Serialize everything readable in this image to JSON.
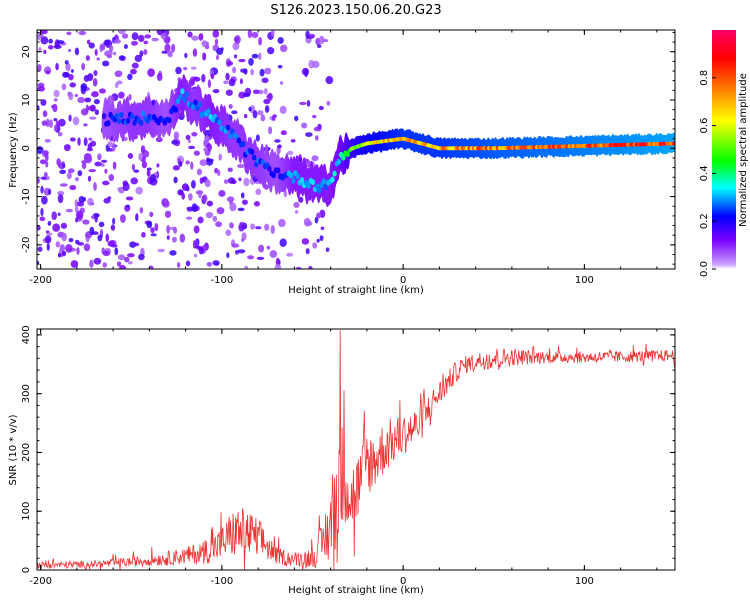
{
  "title": "S126.2023.150.06.20.G23",
  "chart_data": [
    {
      "type": "heatmap",
      "xlabel": "Height of straight line (km)",
      "ylabel": "Frequency (Hz)",
      "xlim": [
        -202,
        150
      ],
      "ylim": [
        -25,
        24.5
      ],
      "xticks": [
        -200,
        -100,
        0,
        100
      ],
      "yticks": [
        20,
        10,
        0,
        -10,
        -20
      ],
      "colorbar": {
        "label": "Normalized spectral amplitude",
        "range": [
          0.0,
          1.0
        ],
        "ticks": [
          0.0,
          0.2,
          0.4,
          0.6,
          0.8
        ],
        "colors": [
          "#ffffff",
          "#c7a0ff",
          "#7a00ff",
          "#0000ff",
          "#00ffff",
          "#00ff00",
          "#ffff00",
          "#ff8000",
          "#ff0000",
          "#ff0066"
        ]
      },
      "ridge": {
        "x": [
          -165,
          -150,
          -140,
          -130,
          -122,
          -115,
          -105,
          -95,
          -88,
          -80,
          -70,
          -60,
          -52,
          -45,
          -40,
          -35,
          -28,
          -20,
          -10,
          0,
          10,
          20,
          50,
          100,
          150
        ],
        "freq": [
          6,
          6,
          6.5,
          6,
          11,
          9,
          6,
          3,
          0,
          -3,
          -5,
          -6,
          -7,
          -8,
          -7,
          -2,
          0,
          1,
          1.5,
          2,
          1,
          0,
          0,
          0.5,
          1
        ],
        "amplitude": [
          0.2,
          0.25,
          0.25,
          0.2,
          0.3,
          0.25,
          0.3,
          0.25,
          0.25,
          0.25,
          0.2,
          0.3,
          0.3,
          0.3,
          0.3,
          0.35,
          0.5,
          0.6,
          0.65,
          0.7,
          0.7,
          0.7,
          0.75,
          0.8,
          0.85
        ]
      },
      "scatter_region": {
        "x": [
          -202,
          -40
        ],
        "freq": [
          -25,
          24.5
        ],
        "amplitude": 0.15
      }
    },
    {
      "type": "line",
      "xlabel": "Height of straight line (km)",
      "ylabel": "SNR (10 * v/v)",
      "xlim": [
        -202,
        150
      ],
      "ylim": [
        0,
        410
      ],
      "xticks": [
        -200,
        -100,
        0,
        100
      ],
      "yticks": [
        0,
        100,
        200,
        300,
        400
      ],
      "color": "#ee3333",
      "envelope": {
        "x": [
          -202,
          -170,
          -150,
          -130,
          -120,
          -110,
          -100,
          -95,
          -90,
          -85,
          -80,
          -75,
          -70,
          -60,
          -50,
          -45,
          -40,
          -36,
          -34,
          -32,
          -30,
          -28,
          -25,
          -20,
          -15,
          -10,
          -5,
          0,
          10,
          15,
          20,
          25,
          30,
          35,
          40,
          50,
          60,
          80,
          100,
          120,
          150
        ],
        "mean": [
          8,
          10,
          14,
          20,
          24,
          30,
          45,
          60,
          65,
          60,
          55,
          40,
          25,
          18,
          22,
          40,
          80,
          130,
          180,
          200,
          150,
          120,
          140,
          180,
          190,
          210,
          220,
          230,
          250,
          280,
          300,
          320,
          340,
          350,
          355,
          360,
          362,
          362,
          362,
          363,
          365
        ],
        "spread": [
          6,
          6,
          8,
          12,
          15,
          20,
          30,
          40,
          45,
          40,
          35,
          25,
          15,
          12,
          18,
          35,
          70,
          120,
          140,
          120,
          100,
          70,
          60,
          55,
          50,
          45,
          40,
          35,
          30,
          25,
          22,
          20,
          18,
          15,
          14,
          20,
          15,
          10,
          10,
          10,
          10
        ]
      }
    }
  ]
}
